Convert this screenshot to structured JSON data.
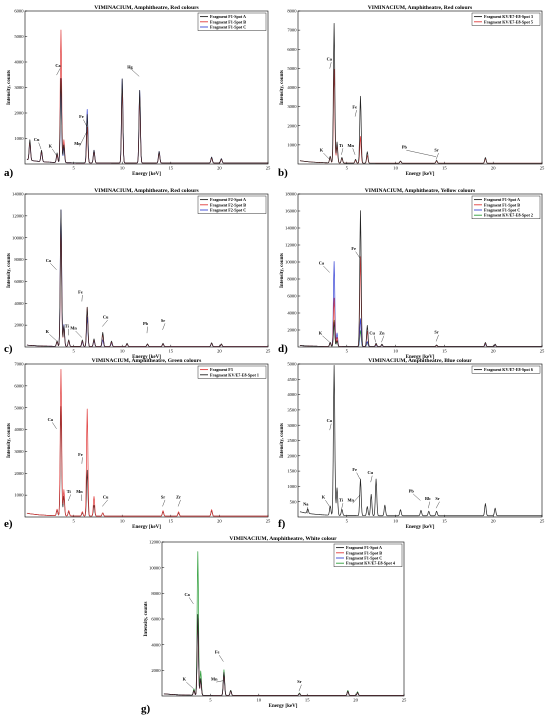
{
  "chart_data": [
    {
      "id": "a",
      "type": "line",
      "panel_label": "a)",
      "title": "VIMINACIUM, Amphitheatre, Red colours",
      "xlabel": "Energy [keV]",
      "ylabel": "Intensity, counts",
      "xlim": [
        0,
        25
      ],
      "ylim": [
        0,
        6000
      ],
      "xticks": [
        5,
        10,
        15,
        20,
        25
      ],
      "yticks": [
        1000,
        2000,
        3000,
        4000,
        5000,
        6000
      ],
      "legend_position": "top-right",
      "series": [
        {
          "name": "Fragment F1-Spot A",
          "color": "#222222"
        },
        {
          "name": "Fragment F1-Spot B",
          "color": "#e03c3c"
        },
        {
          "name": "Fragment F1-Spot C",
          "color": "#3a46d6"
        }
      ],
      "peaks": [
        {
          "x": 0.5,
          "h": [
            800,
            700,
            700
          ]
        },
        {
          "x": 1.7,
          "h": [
            450,
            400,
            380
          ]
        },
        {
          "x": 3.3,
          "h": [
            380,
            300,
            320
          ]
        },
        {
          "x": 3.7,
          "h": [
            3300,
            5200,
            3300
          ]
        },
        {
          "x": 4.0,
          "h": [
            700,
            900,
            600
          ]
        },
        {
          "x": 6.4,
          "h": [
            1900,
            1400,
            2100
          ]
        },
        {
          "x": 7.1,
          "h": [
            500,
            450,
            500
          ]
        },
        {
          "x": 10.0,
          "h": [
            3300,
            2900,
            3300
          ]
        },
        {
          "x": 11.8,
          "h": [
            2850,
            2600,
            2850
          ]
        },
        {
          "x": 13.8,
          "h": [
            450,
            400,
            450
          ]
        },
        {
          "x": 19.2,
          "h": [
            230,
            200,
            230
          ]
        },
        {
          "x": 20.2,
          "h": [
            170,
            150,
            170
          ]
        }
      ],
      "annotations": [
        {
          "label": "Cu",
          "x": 1.2,
          "y": 900
        },
        {
          "label": "K",
          "x": 2.6,
          "y": 650
        },
        {
          "label": "Ca",
          "x": 3.4,
          "y": 3800
        },
        {
          "label": "Fe",
          "x": 5.8,
          "y": 1800
        },
        {
          "label": "Mn",
          "x": 5.4,
          "y": 750
        },
        {
          "label": "Hg",
          "x": 10.8,
          "y": 3750
        }
      ]
    },
    {
      "id": "b",
      "type": "line",
      "panel_label": "b)",
      "title": "VIMINACIUM, Amphitheatre, Red colours",
      "xlabel": "Energy [keV]",
      "ylabel": "Intensity, counts",
      "xlim": [
        0,
        25
      ],
      "ylim": [
        0,
        8000
      ],
      "xticks": [
        5,
        10,
        15,
        20,
        25
      ],
      "yticks": [
        1000,
        2000,
        3000,
        4000,
        5000,
        6000,
        7000,
        8000
      ],
      "legend_position": "top-right",
      "series": [
        {
          "name": "Fragment KV/E7-E8-Spot 3",
          "color": "#222222"
        },
        {
          "name": "Fragment KV/E7-E8-Spot 5",
          "color": "#e03c3c"
        }
      ],
      "peaks": [
        {
          "x": 3.3,
          "h": [
            350,
            300
          ]
        },
        {
          "x": 3.7,
          "h": [
            7300,
            4900
          ]
        },
        {
          "x": 4.0,
          "h": [
            1100,
            900
          ]
        },
        {
          "x": 4.5,
          "h": [
            300,
            250
          ]
        },
        {
          "x": 5.9,
          "h": [
            200,
            150
          ]
        },
        {
          "x": 6.4,
          "h": [
            3500,
            1400
          ]
        },
        {
          "x": 7.1,
          "h": [
            600,
            400
          ]
        },
        {
          "x": 10.5,
          "h": [
            120,
            100
          ]
        },
        {
          "x": 14.2,
          "h": [
            150,
            120
          ]
        },
        {
          "x": 19.2,
          "h": [
            300,
            250
          ]
        }
      ],
      "annotations": [
        {
          "label": "K",
          "x": 2.4,
          "y": 650
        },
        {
          "label": "Ca",
          "x": 3.2,
          "y": 5400
        },
        {
          "label": "Ti",
          "x": 4.4,
          "y": 900
        },
        {
          "label": "Mn",
          "x": 5.4,
          "y": 900
        },
        {
          "label": "Fe",
          "x": 5.8,
          "y": 2900
        },
        {
          "label": "Pb",
          "x": 10.9,
          "y": 800
        },
        {
          "label": "Sr",
          "x": 14.2,
          "y": 650
        }
      ]
    },
    {
      "id": "c",
      "type": "line",
      "panel_label": "c)",
      "title": "VIMINACIUM, Amphitheatre, Red colours",
      "xlabel": "Energy [keV]",
      "ylabel": "Intensity, counts",
      "xlim": [
        0,
        25
      ],
      "ylim": [
        0,
        14000
      ],
      "xticks": [
        5,
        10,
        15,
        20,
        25
      ],
      "yticks": [
        2000,
        4000,
        6000,
        8000,
        10000,
        12000,
        14000
      ],
      "legend_position": "top-right",
      "series": [
        {
          "name": "Fragment F2-Spot A",
          "color": "#222222"
        },
        {
          "name": "Fragment F2-Spot B",
          "color": "#e03c3c"
        },
        {
          "name": "Fragment F2-Spot C",
          "color": "#3a46d6"
        }
      ],
      "peaks": [
        {
          "x": 3.3,
          "h": [
            500,
            400,
            400
          ]
        },
        {
          "x": 3.7,
          "h": [
            12500,
            11000,
            12500
          ]
        },
        {
          "x": 4.0,
          "h": [
            1900,
            1800,
            2000
          ]
        },
        {
          "x": 4.5,
          "h": [
            600,
            500,
            500
          ]
        },
        {
          "x": 5.9,
          "h": [
            600,
            500,
            400
          ]
        },
        {
          "x": 6.4,
          "h": [
            3600,
            3600,
            2700
          ]
        },
        {
          "x": 7.1,
          "h": [
            700,
            600,
            500
          ]
        },
        {
          "x": 8.0,
          "h": [
            1300,
            1100,
            600
          ]
        },
        {
          "x": 8.9,
          "h": [
            500,
            400,
            300
          ]
        },
        {
          "x": 10.5,
          "h": [
            300,
            250,
            250
          ]
        },
        {
          "x": 12.6,
          "h": [
            250,
            200,
            200
          ]
        },
        {
          "x": 14.2,
          "h": [
            300,
            250,
            250
          ]
        },
        {
          "x": 19.2,
          "h": [
            350,
            300,
            300
          ]
        },
        {
          "x": 20.2,
          "h": [
            250,
            200,
            200
          ]
        }
      ],
      "annotations": [
        {
          "label": "K",
          "x": 2.3,
          "y": 1300
        },
        {
          "label": "Ca",
          "x": 2.4,
          "y": 7800
        },
        {
          "label": "Ti",
          "x": 4.3,
          "y": 1800
        },
        {
          "label": "Mn",
          "x": 5.0,
          "y": 1600
        },
        {
          "label": "Fe",
          "x": 5.7,
          "y": 4900
        },
        {
          "label": "Cu",
          "x": 8.3,
          "y": 2600
        },
        {
          "label": "Pb",
          "x": 12.4,
          "y": 2000
        },
        {
          "label": "Sr",
          "x": 14.2,
          "y": 2300
        }
      ]
    },
    {
      "id": "d",
      "type": "line",
      "panel_label": "d)",
      "title": "VIMINACIUM, Amphitheatre, Yellow colours",
      "xlabel": "Energy [keV]",
      "ylabel": "Intensity, counts",
      "xlim": [
        0,
        25
      ],
      "ylim": [
        0,
        18000
      ],
      "xticks": [
        5,
        10,
        15,
        20,
        25
      ],
      "yticks": [
        2000,
        4000,
        6000,
        8000,
        10000,
        12000,
        14000,
        16000,
        18000
      ],
      "legend_position": "top-right",
      "series": [
        {
          "name": "Fragment F1-Spot A",
          "color": "#222222"
        },
        {
          "name": "Fragment F1-Spot B",
          "color": "#e03c3c"
        },
        {
          "name": "Fragment F1-Spot C",
          "color": "#3a46d6"
        },
        {
          "name": "Fragment KV/E7-E8-Spot 2",
          "color": "#2e9e3a"
        }
      ],
      "peaks": [
        {
          "x": 3.3,
          "h": [
            500,
            400,
            450,
            350
          ]
        },
        {
          "x": 3.7,
          "h": [
            2900,
            5700,
            10000,
            3100
          ]
        },
        {
          "x": 4.0,
          "h": [
            700,
            1100,
            1600,
            700
          ]
        },
        {
          "x": 6.4,
          "h": [
            16000,
            10600,
            3300,
            1900
          ]
        },
        {
          "x": 7.1,
          "h": [
            2500,
            1800,
            600,
            500
          ]
        },
        {
          "x": 8.0,
          "h": [
            400,
            300,
            200,
            200
          ]
        },
        {
          "x": 8.6,
          "h": [
            300,
            250,
            200,
            200
          ]
        },
        {
          "x": 14.2,
          "h": [
            200,
            150,
            150,
            150
          ]
        },
        {
          "x": 19.2,
          "h": [
            500,
            400,
            300,
            300
          ]
        },
        {
          "x": 20.2,
          "h": [
            300,
            250,
            200,
            200
          ]
        }
      ],
      "annotations": [
        {
          "label": "K",
          "x": 2.3,
          "y": 1500
        },
        {
          "label": "Ca",
          "x": 2.4,
          "y": 9700
        },
        {
          "label": "Fe",
          "x": 5.7,
          "y": 11400
        },
        {
          "label": "Cu",
          "x": 7.6,
          "y": 1500
        },
        {
          "label": "Zn",
          "x": 8.6,
          "y": 1500
        },
        {
          "label": "Sr",
          "x": 14.2,
          "y": 1600
        }
      ]
    },
    {
      "id": "e",
      "type": "line",
      "panel_label": "e)",
      "title": "VIMINACIUM, Amphitheatre, Green colours",
      "xlabel": "Energy [keV]",
      "ylabel": "Intensity, counts",
      "xlim": [
        0,
        25
      ],
      "ylim": [
        0,
        7000
      ],
      "xticks": [
        5,
        10,
        15,
        20,
        25
      ],
      "yticks": [
        1000,
        2000,
        3000,
        4000,
        5000,
        6000,
        7000
      ],
      "legend_position": "top-right",
      "series": [
        {
          "name": "Fragment F3",
          "color": "#e03c3c"
        },
        {
          "name": "Fragment KV/E7-E8-Spot 1",
          "color": "#222222"
        }
      ],
      "peaks": [
        {
          "x": 3.3,
          "h": [
            300,
            250
          ]
        },
        {
          "x": 3.7,
          "h": [
            6700,
            5000
          ]
        },
        {
          "x": 4.0,
          "h": [
            1200,
            900
          ]
        },
        {
          "x": 4.5,
          "h": [
            250,
            200
          ]
        },
        {
          "x": 5.9,
          "h": [
            200,
            150
          ]
        },
        {
          "x": 6.4,
          "h": [
            4900,
            2100
          ]
        },
        {
          "x": 7.1,
          "h": [
            900,
            500
          ]
        },
        {
          "x": 8.0,
          "h": [
            150,
            150
          ]
        },
        {
          "x": 14.2,
          "h": [
            250,
            200
          ]
        },
        {
          "x": 15.8,
          "h": [
            200,
            150
          ]
        },
        {
          "x": 19.2,
          "h": [
            300,
            250
          ]
        }
      ],
      "annotations": [
        {
          "label": "Ca",
          "x": 2.6,
          "y": 4400
        },
        {
          "label": "Ti",
          "x": 4.5,
          "y": 1100
        },
        {
          "label": "Mn",
          "x": 5.6,
          "y": 1100
        },
        {
          "label": "Fe",
          "x": 5.7,
          "y": 2800
        },
        {
          "label": "Cu",
          "x": 8.3,
          "y": 850
        },
        {
          "label": "Sr",
          "x": 14.2,
          "y": 850
        },
        {
          "label": "Zr",
          "x": 15.8,
          "y": 850
        }
      ]
    },
    {
      "id": "f",
      "type": "line",
      "panel_label": "f)",
      "title": "VIMINACIUM, Amphitheatre, Blue colour",
      "xlabel": "Energy [keV]",
      "ylabel": "Intensity, counts",
      "xlim": [
        0,
        25
      ],
      "ylim": [
        0,
        5000
      ],
      "xticks": [
        5,
        10,
        15,
        20,
        25
      ],
      "yticks": [
        500,
        1000,
        1500,
        2000,
        2500,
        3000,
        3500,
        4000,
        4500,
        5000
      ],
      "legend_position": "top-right",
      "series": [
        {
          "name": "Fragment KV/E7-E8-Spot 6",
          "color": "#222222"
        }
      ],
      "peaks": [
        {
          "x": 1.0,
          "h": [
            150
          ]
        },
        {
          "x": 3.3,
          "h": [
            300
          ]
        },
        {
          "x": 3.7,
          "h": [
            4900
          ]
        },
        {
          "x": 4.0,
          "h": [
            900
          ]
        },
        {
          "x": 4.5,
          "h": [
            200
          ]
        },
        {
          "x": 6.4,
          "h": [
            1200
          ]
        },
        {
          "x": 7.1,
          "h": [
            300
          ]
        },
        {
          "x": 7.5,
          "h": [
            700
          ]
        },
        {
          "x": 8.0,
          "h": [
            1200
          ]
        },
        {
          "x": 8.9,
          "h": [
            350
          ]
        },
        {
          "x": 10.5,
          "h": [
            200
          ]
        },
        {
          "x": 12.6,
          "h": [
            180
          ]
        },
        {
          "x": 13.4,
          "h": [
            150
          ]
        },
        {
          "x": 14.2,
          "h": [
            150
          ]
        },
        {
          "x": 19.2,
          "h": [
            400
          ]
        },
        {
          "x": 20.2,
          "h": [
            250
          ]
        }
      ],
      "annotations": [
        {
          "label": "Na",
          "x": 0.8,
          "y": 380
        },
        {
          "label": "K",
          "x": 2.6,
          "y": 600
        },
        {
          "label": "Ca",
          "x": 3.2,
          "y": 3100
        },
        {
          "label": "Ti",
          "x": 4.4,
          "y": 500
        },
        {
          "label": "Mn",
          "x": 5.4,
          "y": 500
        },
        {
          "label": "Fe",
          "x": 5.8,
          "y": 1500
        },
        {
          "label": "Cu",
          "x": 7.4,
          "y": 1400
        },
        {
          "label": "Pb",
          "x": 11.6,
          "y": 800
        },
        {
          "label": "Rb",
          "x": 13.3,
          "y": 550
        },
        {
          "label": "Sr",
          "x": 14.3,
          "y": 550
        }
      ]
    },
    {
      "id": "g",
      "type": "line",
      "panel_label": "g)",
      "title": "VIMINACIUM, Amphitheatre, White colour",
      "xlabel": "Energy [keV]",
      "ylabel": "Intensity, counts",
      "xlim": [
        0,
        25
      ],
      "ylim": [
        0,
        12000
      ],
      "xticks": [
        5,
        10,
        15,
        20,
        25
      ],
      "yticks": [
        2000,
        4000,
        6000,
        8000,
        10000,
        12000
      ],
      "legend_position": "top-right",
      "series": [
        {
          "name": "Fragment F1-Spot A",
          "color": "#222222"
        },
        {
          "name": "Fragment F1-Spot B",
          "color": "#e03c3c"
        },
        {
          "name": "Fragment F1-Spot C",
          "color": "#3a46d6"
        },
        {
          "name": "Fragment KV/E7-E8-Spot 4",
          "color": "#2e9e3a"
        }
      ],
      "peaks": [
        {
          "x": 3.3,
          "h": [
            400,
            350,
            350,
            500
          ]
        },
        {
          "x": 3.7,
          "h": [
            6300,
            6000,
            6000,
            11200
          ]
        },
        {
          "x": 4.0,
          "h": [
            1300,
            1200,
            1200,
            1900
          ]
        },
        {
          "x": 6.4,
          "h": [
            1800,
            1700,
            1700,
            2000
          ]
        },
        {
          "x": 7.1,
          "h": [
            400,
            350,
            350,
            400
          ]
        },
        {
          "x": 14.2,
          "h": [
            150,
            150,
            150,
            200
          ]
        },
        {
          "x": 19.2,
          "h": [
            350,
            300,
            300,
            400
          ]
        },
        {
          "x": 20.2,
          "h": [
            250,
            200,
            200,
            300
          ]
        }
      ],
      "annotations": [
        {
          "label": "K",
          "x": 2.3,
          "y": 1200
        },
        {
          "label": "Ca",
          "x": 2.6,
          "y": 7800
        },
        {
          "label": "Mn",
          "x": 5.4,
          "y": 1200
        },
        {
          "label": "Fe",
          "x": 5.7,
          "y": 3300
        },
        {
          "label": "Sr",
          "x": 14.2,
          "y": 1000
        }
      ]
    }
  ]
}
